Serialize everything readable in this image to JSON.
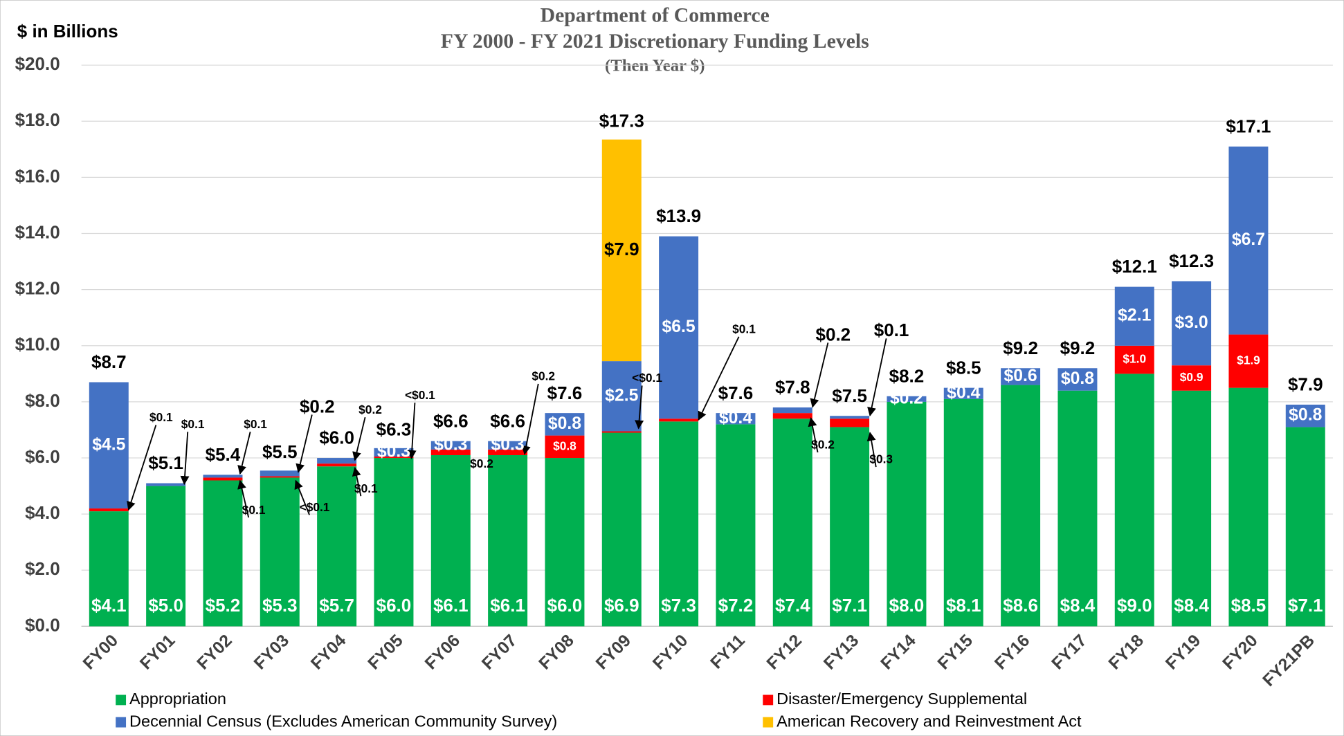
{
  "chart_data": {
    "type": "stacked_bar",
    "title": "Department of Commerce",
    "subtitle": "FY 2000 - FY 2021 Discretionary Funding Levels",
    "subtitle2": "(Then Year $)",
    "y_label": "$ in Billions",
    "categories": [
      "FY00",
      "FY01",
      "FY02",
      "FY03",
      "FY04",
      "FY05",
      "FY06",
      "FY07",
      "FY08",
      "FY09",
      "FY10",
      "FY11",
      "FY12",
      "FY13",
      "FY14",
      "FY15",
      "FY16",
      "FY17",
      "FY18",
      "FY19",
      "FY20",
      "FY21PB"
    ],
    "series": [
      {
        "name": "Appropriation",
        "color": "#00b050",
        "values": [
          4.1,
          5.0,
          5.2,
          5.3,
          5.7,
          6.0,
          6.1,
          6.1,
          6.0,
          6.9,
          7.3,
          7.2,
          7.4,
          7.1,
          8.0,
          8.1,
          8.6,
          8.4,
          9.0,
          8.4,
          8.5,
          7.1
        ],
        "value_labels": [
          "$4.1",
          "$5.0",
          "$5.2",
          "$5.3",
          "$5.7",
          "$6.0",
          "$6.1",
          "$6.1",
          "$6.0",
          "$6.9",
          "$7.3",
          "$7.2",
          "$7.4",
          "$7.1",
          "$8.0",
          "$8.1",
          "$8.6",
          "$8.4",
          "$9.0",
          "$8.4",
          "$8.5",
          "$7.1"
        ]
      },
      {
        "name": "Disaster/Emergency Supplemental",
        "color": "#ff0000",
        "values": [
          0.1,
          null,
          0.1,
          0.05,
          0.1,
          0.05,
          0.2,
          0.2,
          0.8,
          0.05,
          0.1,
          null,
          0.2,
          0.3,
          null,
          null,
          null,
          null,
          1.0,
          0.9,
          1.9,
          null
        ],
        "value_labels": [
          "$0.1",
          null,
          "$0.1",
          "<$0.1",
          "$0.1",
          "<$0.1",
          "$0.2",
          "$0.2",
          "$0.8",
          "<$0.1",
          "$0.1",
          null,
          "$0.2",
          "$0.3",
          null,
          null,
          null,
          null,
          "$1.0",
          "$0.9",
          "$1.9",
          null
        ]
      },
      {
        "name": "Decennial Census (Excludes American Community Survey)",
        "color": "#4472c4",
        "values": [
          4.5,
          0.1,
          0.1,
          0.2,
          0.2,
          0.3,
          0.3,
          0.3,
          0.8,
          2.5,
          6.5,
          0.4,
          0.2,
          0.1,
          0.2,
          0.4,
          0.6,
          0.8,
          2.1,
          3.0,
          6.7,
          0.8
        ],
        "value_labels": [
          "$4.5",
          "$0.1",
          "$0.1",
          "$0.2",
          "$0.2",
          "$0.3",
          "$0.3",
          "$0.3",
          "$0.8",
          "$2.5",
          "$6.5",
          "$0.4",
          "$0.2",
          "$0.1",
          "$0.2",
          "$0.4",
          "$0.6",
          "$0.8",
          "$2.1",
          "$3.0",
          "$6.7",
          "$0.8"
        ]
      },
      {
        "name": "American Recovery and Reinvestment Act",
        "color": "#ffc000",
        "values": [
          null,
          null,
          null,
          null,
          null,
          null,
          null,
          null,
          null,
          7.9,
          null,
          null,
          null,
          null,
          null,
          null,
          null,
          null,
          null,
          null,
          null,
          null
        ],
        "value_labels": [
          null,
          null,
          null,
          null,
          null,
          null,
          null,
          null,
          null,
          "$7.9",
          null,
          null,
          null,
          null,
          null,
          null,
          null,
          null,
          null,
          null,
          null,
          null
        ]
      }
    ],
    "totals": [
      8.7,
      5.1,
      5.4,
      5.5,
      6.0,
      6.3,
      6.6,
      6.6,
      7.6,
      17.3,
      13.9,
      7.6,
      7.8,
      7.5,
      8.2,
      8.5,
      9.2,
      9.2,
      12.1,
      12.3,
      17.1,
      7.9
    ],
    "total_labels": [
      "$8.7",
      "$5.1",
      "$5.4",
      "$5.5",
      "$6.0",
      "$6.3",
      "$6.6",
      "$6.6",
      "$7.6",
      "$17.3",
      "$13.9",
      "$7.6",
      "$7.8",
      "$7.5",
      "$8.2",
      "$8.5",
      "$9.2",
      "$9.2",
      "$12.1",
      "$12.3",
      "$17.1",
      "$7.9"
    ],
    "ylim": [
      0,
      20
    ],
    "yticks": [
      {
        "value": 0,
        "label": "$0.0"
      },
      {
        "value": 2,
        "label": "$2.0"
      },
      {
        "value": 4,
        "label": "$4.0"
      },
      {
        "value": 6,
        "label": "$6.0"
      },
      {
        "value": 8,
        "label": "$8.0"
      },
      {
        "value": 10,
        "label": "$10.0"
      },
      {
        "value": 12,
        "label": "$12.0"
      },
      {
        "value": 14,
        "label": "$14.0"
      },
      {
        "value": 16,
        "label": "$16.0"
      },
      {
        "value": 18,
        "label": "$18.0"
      },
      {
        "value": 20,
        "label": "$20.0"
      }
    ],
    "grid": true,
    "legend": "bottom"
  }
}
